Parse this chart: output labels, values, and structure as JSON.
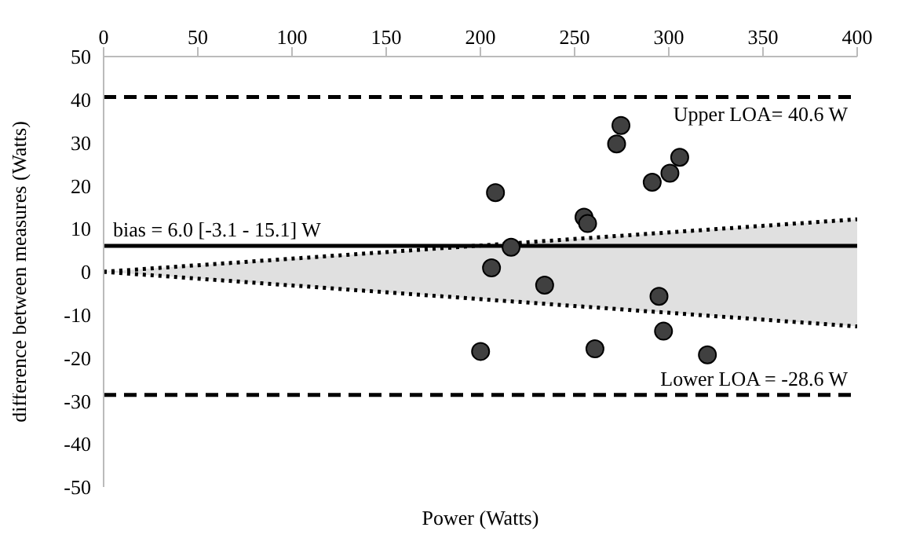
{
  "chart_data": {
    "type": "scatter",
    "xlabel": "Power (Watts)",
    "ylabel": "difference between measures (Watts)",
    "xlim": [
      0,
      400
    ],
    "xticks": [
      0,
      50,
      100,
      150,
      200,
      250,
      300,
      350,
      400
    ],
    "ylim": [
      -50,
      50
    ],
    "yticks": [
      -50,
      -40,
      -30,
      -20,
      -10,
      0,
      10,
      20,
      30,
      40,
      50
    ],
    "grid": false,
    "legend": false,
    "marker": "circle",
    "series": [
      {
        "type": "area",
        "color": "#e0e0e0",
        "x": [
          0,
          400
        ],
        "values": [
          null,
          null
        ],
        "lower": [
          0,
          -12.7
        ],
        "upper": [
          0,
          12.2
        ]
      },
      {
        "type": "line",
        "color": "#000000",
        "line_style": "dotted",
        "x": [
          0,
          400
        ],
        "values": [
          0,
          12.2
        ],
        "marker": "none"
      },
      {
        "type": "line",
        "color": "#000000",
        "line_style": "dotted",
        "x": [
          0,
          400
        ],
        "values": [
          0,
          -12.7
        ],
        "marker": "none"
      },
      {
        "color": "#404040",
        "x": [
          274.6,
          272.3,
          305.8,
          300.6,
          291.2,
          208,
          255,
          256.9,
          216.3,
          205.9,
          234.1,
          294.8,
          297.2,
          200.1,
          260.8,
          320.5
        ],
        "values": [
          34.0,
          29.7,
          26.6,
          22.9,
          20.8,
          18.4,
          12.7,
          11.2,
          5.7,
          0.9,
          -3.1,
          -5.7,
          -13.8,
          -18.5,
          -17.9,
          -19.3
        ]
      }
    ],
    "ref_lines": [
      {
        "axis": "y",
        "value": 40.6,
        "label": "Upper LOA= 40.6 W",
        "line_style": "dashed",
        "color": "#000000"
      },
      {
        "axis": "y",
        "value": 6.0,
        "label": "bias = 6.0 [-3.1 - 15.1] W",
        "line_style": "solid",
        "color": "#000000"
      },
      {
        "axis": "y",
        "value": -28.6,
        "label": "Lower LOA = -28.6 W",
        "line_style": "dashed",
        "color": "#000000"
      }
    ]
  }
}
